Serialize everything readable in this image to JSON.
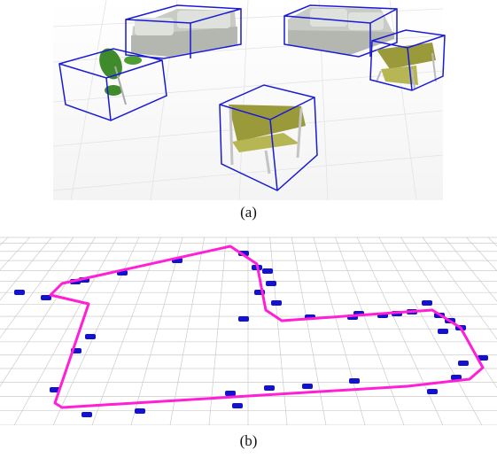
{
  "figure": {
    "panel_a": {
      "caption": "(a)",
      "objects": [
        "sofa",
        "sofa",
        "plant",
        "chair",
        "chair"
      ],
      "colors": {
        "bbox": "#1a1ad6",
        "sofa": "#c9ccc6",
        "chair_seat": "#9a9a3a",
        "plant": "#3f8a2a"
      }
    },
    "panel_b": {
      "caption": "(b)",
      "colors": {
        "trajectory": "#ff1fd6",
        "car": "#1212d0",
        "grid": "#c8c8c8"
      }
    }
  }
}
